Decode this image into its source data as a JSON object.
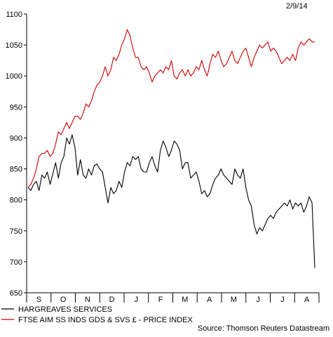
{
  "chart_data": {
    "type": "line",
    "date_label": "2/9/14",
    "source": "Source: Thomson Reuters Datastream",
    "x_tick_labels": [
      "S",
      "O",
      "N",
      "D",
      "J",
      "F",
      "M",
      "A",
      "M",
      "J",
      "J",
      "A"
    ],
    "ylim": [
      650,
      1100
    ],
    "y_ticks": [
      650,
      700,
      750,
      800,
      850,
      900,
      950,
      1000,
      1050,
      1100
    ],
    "grid": false,
    "legend_position": "bottom-left",
    "series": [
      {
        "name": "HARGREAVES SERVICES",
        "color": "#000000",
        "values": [
          820,
          815,
          825,
          830,
          815,
          840,
          835,
          845,
          825,
          842,
          860,
          835,
          860,
          870,
          900,
          890,
          905,
          885,
          840,
          865,
          840,
          835,
          850,
          840,
          855,
          858,
          850,
          845,
          820,
          795,
          820,
          810,
          815,
          830,
          820,
          845,
          860,
          855,
          870,
          865,
          870,
          850,
          845,
          845,
          860,
          870,
          855,
          845,
          880,
          895,
          885,
          870,
          880,
          895,
          890,
          880,
          850,
          860,
          860,
          835,
          840,
          845,
          830,
          810,
          815,
          805,
          810,
          825,
          835,
          840,
          850,
          840,
          835,
          830,
          825,
          850,
          840,
          835,
          850,
          820,
          800,
          790,
          760,
          745,
          755,
          750,
          760,
          770,
          775,
          770,
          780,
          785,
          790,
          795,
          790,
          800,
          785,
          795,
          790,
          795,
          780,
          790,
          805,
          795,
          690
        ]
      },
      {
        "name": "FTSE AIM SS INDS GDS & SVS £ - PRICE INDEX",
        "color": "#cc0000",
        "values": [
          820,
          825,
          835,
          850,
          870,
          875,
          875,
          880,
          870,
          875,
          890,
          910,
          905,
          915,
          925,
          915,
          925,
          935,
          935,
          930,
          940,
          955,
          950,
          960,
          975,
          985,
          990,
          1000,
          1015,
          1000,
          1010,
          1030,
          1025,
          1035,
          1050,
          1060,
          1075,
          1065,
          1045,
          1030,
          1030,
          1015,
          1010,
          1015,
          1005,
          990,
          1000,
          1005,
          1010,
          1005,
          1015,
          1010,
          1025,
          1000,
          995,
          1005,
          1010,
          1000,
          1010,
          1000,
          1005,
          1015,
          1010,
          1025,
          1010,
          1000,
          1020,
          1035,
          1030,
          1040,
          1025,
          1015,
          1020,
          1030,
          1040,
          1025,
          1020,
          1030,
          1040,
          1045,
          1030,
          1015,
          1030,
          1040,
          1050,
          1045,
          1050,
          1055,
          1040,
          1045,
          1040,
          1030,
          1020,
          1025,
          1030,
          1025,
          1035,
          1025,
          1045,
          1055,
          1050,
          1055,
          1060,
          1055,
          1055
        ]
      }
    ]
  }
}
